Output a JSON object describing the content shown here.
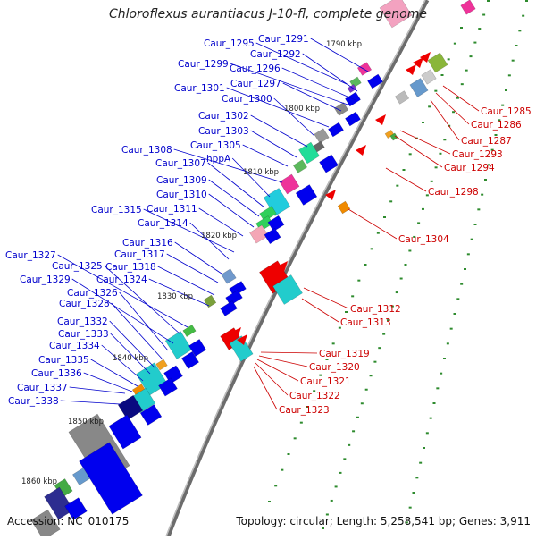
{
  "title": "Chloroflexus aurantiacus J-10-fl, complete genome",
  "footer": {
    "accession": "Accession: NC_010175",
    "topology": "Topology: circular; Length: 5,258,541 bp; Genes: 3,911"
  },
  "colors": {
    "left_label": "#0000cc",
    "right_label": "#cc0000",
    "backbone": "#777777",
    "tick_dots": "#2e8b2e"
  },
  "kbp_ticks": [
    "1790 kbp",
    "1800 kbp",
    "1810 kbp",
    "1820 kbp",
    "1830 kbp",
    "1840 kbp",
    "1850 kbp",
    "1860 kbp"
  ],
  "left_labels": [
    "Caur_1295",
    "Caur_1291",
    "Caur_1292",
    "Caur_1299",
    "Caur_1296",
    "Caur_1297",
    "Caur_1301",
    "Caur_1300",
    "Caur_1302",
    "Caur_1303",
    "Caur_1305",
    "Caur_1308",
    "hppA",
    "Caur_1307",
    "Caur_1309",
    "Caur_1310",
    "Caur_1311",
    "Caur_1315",
    "Caur_1314",
    "Caur_1316",
    "Caur_1317",
    "Caur_1327",
    "Caur_1325",
    "Caur_1318",
    "Caur_1329",
    "Caur_1324",
    "Caur_1326",
    "Caur_1328",
    "Caur_1332",
    "Caur_1333",
    "Caur_1334",
    "Caur_1335",
    "Caur_1336",
    "Caur_1337",
    "Caur_1338"
  ],
  "right_labels": [
    "Caur_1285",
    "Caur_1286",
    "Caur_1287",
    "Caur_1293",
    "Caur_1294",
    "Caur_1298",
    "Caur_1304",
    "Caur_1312",
    "Caur_1313",
    "Caur_1319",
    "Caur_1320",
    "Caur_1321",
    "Caur_1322",
    "Caur_1323"
  ]
}
